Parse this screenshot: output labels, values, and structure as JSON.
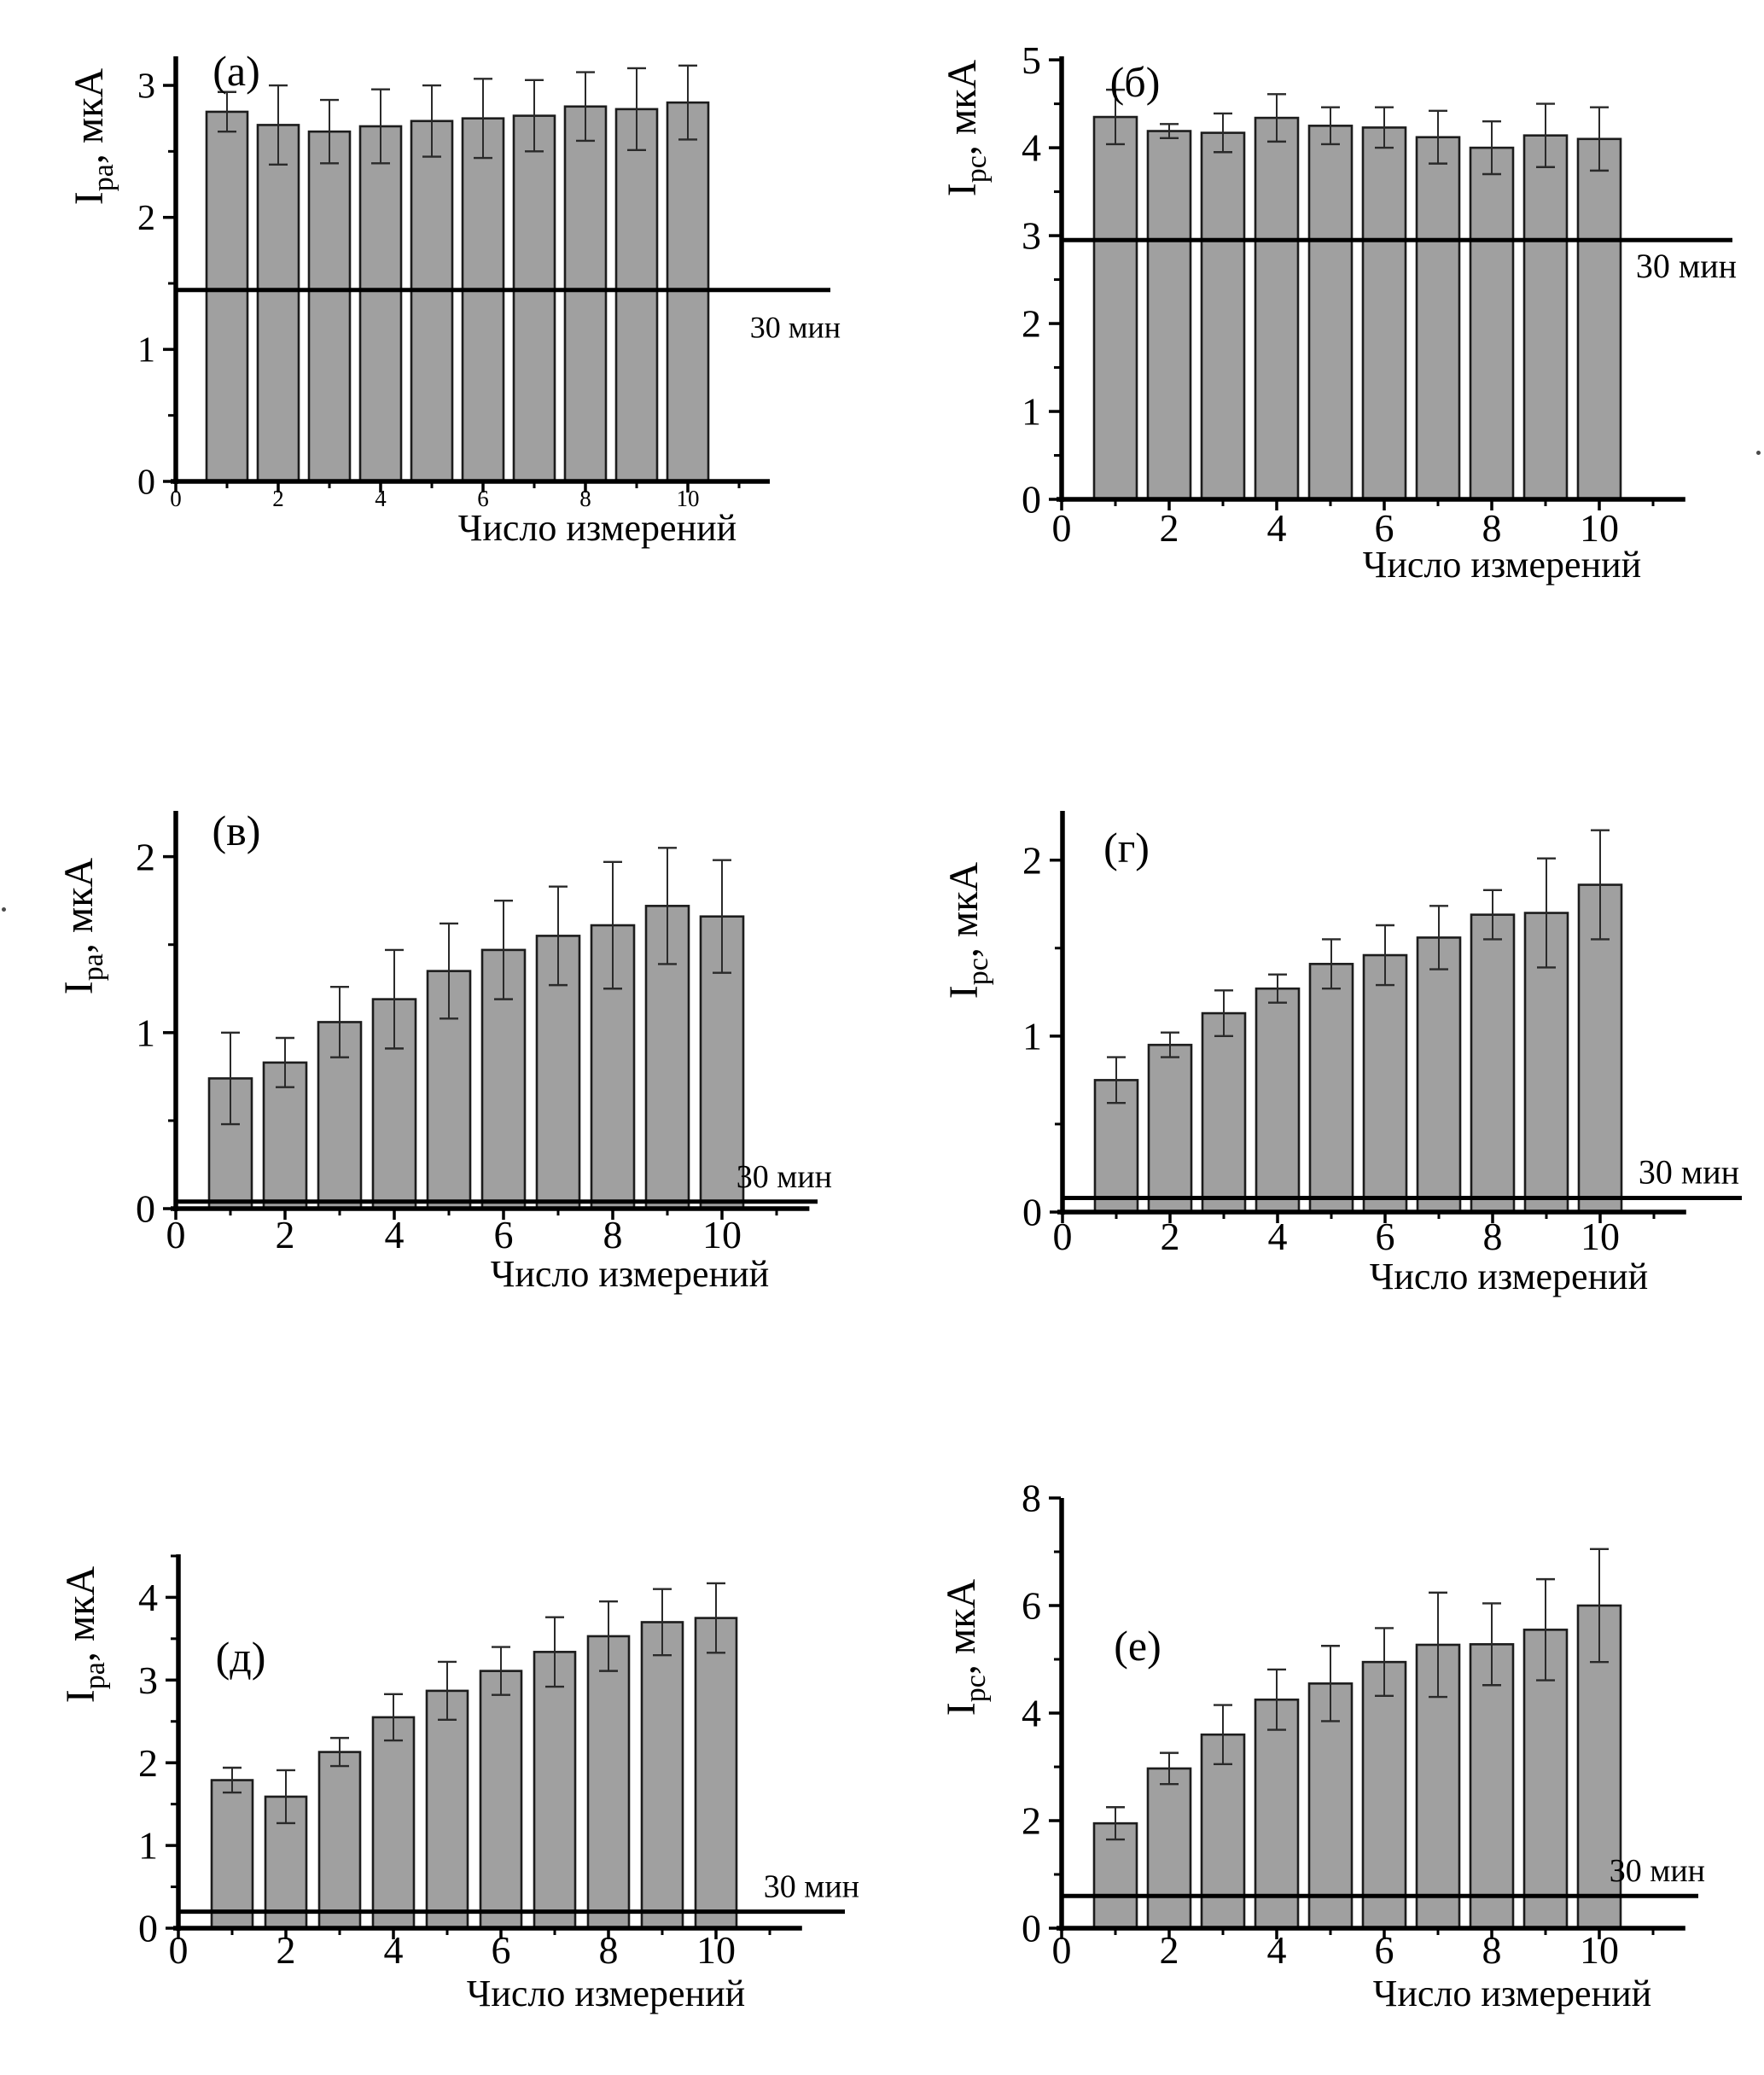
{
  "figure": {
    "xlabel": "Число измерений",
    "ref_label": "30 мин",
    "bar_color": "#a0a0a0",
    "bar_outline": "#1c1c1c",
    "axis_color": "#000000",
    "error_bar_color": "#2a2a2a"
  },
  "chart_data": [
    {
      "type": "bar",
      "panel_label": "(а)",
      "ylabel": {
        "base": "I",
        "sub": "pa",
        "unit": ", мкА"
      },
      "xlabel": "Число измерений",
      "categories": [
        1,
        2,
        3,
        4,
        5,
        6,
        7,
        8,
        9,
        10
      ],
      "values": [
        2.8,
        2.7,
        2.65,
        2.69,
        2.73,
        2.75,
        2.77,
        2.84,
        2.82,
        2.87
      ],
      "errors": [
        0.15,
        0.3,
        0.24,
        0.28,
        0.27,
        0.3,
        0.27,
        0.26,
        0.31,
        0.28
      ],
      "ref_line": 1.45,
      "ref_label": "30 мин",
      "ref_label_position": "below",
      "ylim": [
        0,
        3.22
      ],
      "yticks": [
        0,
        1,
        2,
        3
      ],
      "y_minor_step": 0.5,
      "xticks": [
        0,
        2,
        4,
        6,
        8,
        10
      ],
      "x_minor": [
        1,
        3,
        5,
        7,
        9,
        11
      ],
      "xlim": [
        0,
        11.6
      ]
    },
    {
      "type": "bar",
      "panel_label": "(б)",
      "ylabel": {
        "base": "I",
        "sub": "pc",
        "unit": ", мкА"
      },
      "xlabel": "Число измерений",
      "categories": [
        1,
        2,
        3,
        4,
        5,
        6,
        7,
        8,
        9,
        10
      ],
      "values": [
        4.35,
        4.19,
        4.17,
        4.34,
        4.25,
        4.23,
        4.12,
        4.0,
        4.14,
        4.1
      ],
      "errors": [
        0.31,
        0.08,
        0.22,
        0.27,
        0.21,
        0.23,
        0.3,
        0.3,
        0.36,
        0.36
      ],
      "ref_line": 2.95,
      "ref_label": "30 мин",
      "ref_label_position": "below",
      "ylim": [
        0,
        5.04
      ],
      "yticks": [
        0,
        1,
        2,
        3,
        4,
        5
      ],
      "y_minor_step": 0.5,
      "xticks": [
        0,
        2,
        4,
        6,
        8,
        10
      ],
      "x_minor": [
        1,
        3,
        5,
        7,
        9,
        11
      ],
      "xlim": [
        0,
        11.6
      ]
    },
    {
      "type": "bar",
      "panel_label": "(в)",
      "ylabel": {
        "base": "I",
        "sub": "pa",
        "unit": ", мкА"
      },
      "xlabel": "Число измерений",
      "categories": [
        1,
        2,
        3,
        4,
        5,
        6,
        7,
        8,
        9,
        10
      ],
      "values": [
        0.74,
        0.83,
        1.06,
        1.19,
        1.35,
        1.47,
        1.55,
        1.61,
        1.72,
        1.66
      ],
      "errors": [
        0.26,
        0.14,
        0.2,
        0.28,
        0.27,
        0.28,
        0.28,
        0.36,
        0.33,
        0.32
      ],
      "ref_line": 0.04,
      "ref_label": "30 мин",
      "ref_label_position": "above",
      "ylim": [
        0,
        2.26
      ],
      "yticks": [
        0,
        1,
        2
      ],
      "y_minor_step": 0.5,
      "xticks": [
        0,
        2,
        4,
        6,
        8,
        10
      ],
      "x_minor": [
        1,
        3,
        5,
        7,
        9,
        11
      ],
      "xlim": [
        0,
        11.6
      ]
    },
    {
      "type": "bar",
      "panel_label": "(г)",
      "ylabel": {
        "base": "I",
        "sub": "pc",
        "unit": ", мкА"
      },
      "xlabel": "Число измерений",
      "categories": [
        1,
        2,
        3,
        4,
        5,
        6,
        7,
        8,
        9,
        10
      ],
      "values": [
        0.75,
        0.95,
        1.13,
        1.27,
        1.41,
        1.46,
        1.56,
        1.69,
        1.7,
        1.86
      ],
      "errors": [
        0.13,
        0.07,
        0.13,
        0.08,
        0.14,
        0.17,
        0.18,
        0.14,
        0.31,
        0.31
      ],
      "ref_line": 0.08,
      "ref_label": "30 мин",
      "ref_label_position": "above",
      "ylim": [
        0,
        2.28
      ],
      "yticks": [
        0,
        1,
        2
      ],
      "y_minor_step": 0.5,
      "xticks": [
        0,
        2,
        4,
        6,
        8,
        10
      ],
      "x_minor": [
        1,
        3,
        5,
        7,
        9,
        11
      ],
      "xlim": [
        0,
        11.6
      ]
    },
    {
      "type": "bar",
      "panel_label": "(д)",
      "ylabel": {
        "base": "I",
        "sub": "pa",
        "unit": ", мкА"
      },
      "xlabel": "Число измерений",
      "categories": [
        1,
        2,
        3,
        4,
        5,
        6,
        7,
        8,
        9,
        10
      ],
      "values": [
        1.79,
        1.59,
        2.13,
        2.55,
        2.87,
        3.11,
        3.34,
        3.53,
        3.7,
        3.75
      ],
      "errors": [
        0.15,
        0.32,
        0.17,
        0.28,
        0.35,
        0.29,
        0.42,
        0.42,
        0.4,
        0.42
      ],
      "ref_line": 0.2,
      "ref_label": "30 мин",
      "ref_label_position": "above",
      "ylim": [
        0,
        4.52
      ],
      "yticks": [
        0,
        1,
        2,
        3,
        4
      ],
      "y_minor_step": 0.5,
      "xticks": [
        0,
        2,
        4,
        6,
        8,
        10
      ],
      "x_minor": [
        1,
        3,
        5,
        7,
        9,
        11
      ],
      "xlim": [
        0,
        11.6
      ]
    },
    {
      "type": "bar",
      "panel_label": "(е)",
      "ylabel": {
        "base": "I",
        "sub": "pc",
        "unit": ", мкА"
      },
      "xlabel": "Число измерений",
      "categories": [
        1,
        2,
        3,
        4,
        5,
        6,
        7,
        8,
        9,
        10
      ],
      "values": [
        1.95,
        2.97,
        3.6,
        4.25,
        4.55,
        4.95,
        5.27,
        5.28,
        5.55,
        6.0
      ],
      "errors": [
        0.3,
        0.29,
        0.55,
        0.56,
        0.7,
        0.63,
        0.97,
        0.76,
        0.94,
        1.05
      ],
      "ref_line": 0.6,
      "ref_label": "30 мин",
      "ref_label_position": "above",
      "ylim": [
        0,
        8.0
      ],
      "yticks": [
        0,
        2,
        4,
        6,
        8
      ],
      "y_minor_step": 1,
      "xticks": [
        0,
        2,
        4,
        6,
        8,
        10
      ],
      "x_minor": [
        1,
        3,
        5,
        7,
        9,
        11
      ],
      "xlim": [
        0,
        11.6
      ]
    }
  ]
}
